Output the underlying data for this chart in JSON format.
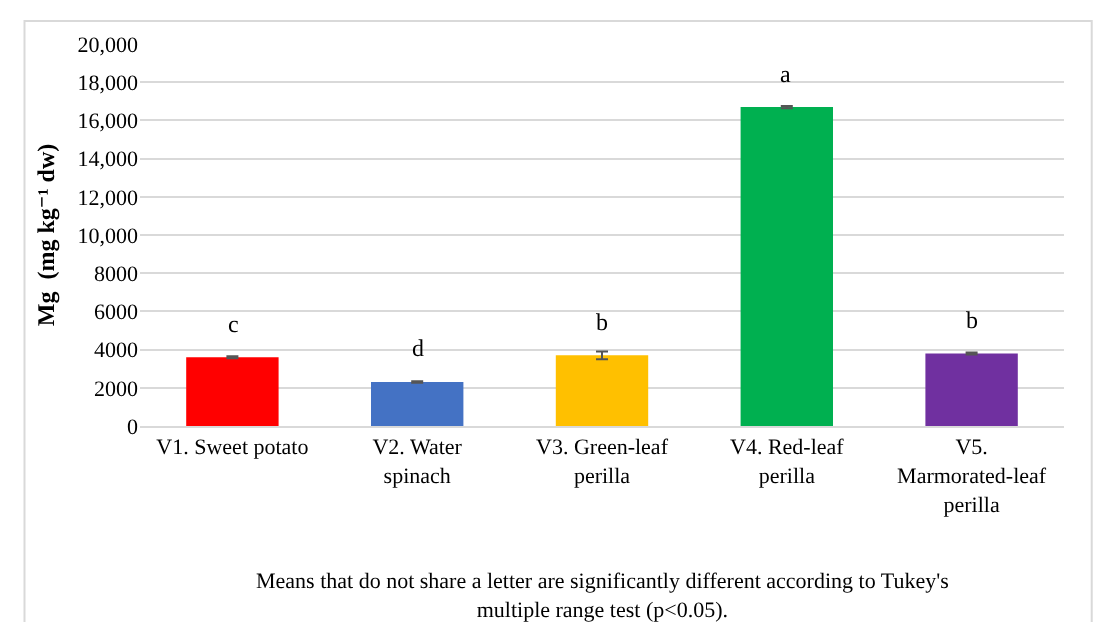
{
  "chart_data": {
    "type": "bar",
    "ylabel": "Mg  (mg kg⁻¹ dw)",
    "categories": [
      "V1. Sweet potato",
      "V2. Water spinach",
      "V3. Green-leaf perilla",
      "V4. Red-leaf perilla",
      "V5. Marmorated-leaf perilla"
    ],
    "values": [
      3600,
      2300,
      3700,
      16700,
      3800
    ],
    "errors": [
      50,
      40,
      200,
      60,
      50
    ],
    "colors": [
      "#ff0000",
      "#4472c4",
      "#ffc000",
      "#00b050",
      "#7030a0"
    ],
    "ylim": [
      0,
      20000
    ],
    "yticks": [
      0,
      2000,
      4000,
      6000,
      8000,
      {
        "value": 10000,
        "label": "10,000"
      },
      {
        "value": 12000,
        "label": "12,000"
      },
      {
        "value": 14000,
        "label": "14,000"
      },
      {
        "value": 16000,
        "label": "16,000"
      },
      {
        "value": 18000,
        "label": "18,000"
      },
      {
        "value": 20000,
        "label": "20,000"
      }
    ],
    "grid": "y",
    "annotations": [
      {
        "text": "c",
        "x": "V1. Sweet potato",
        "y": 3600
      },
      {
        "text": "d",
        "x": "V2. Water spinach",
        "y": 2300
      },
      {
        "text": "b",
        "x": "V3. Green-leaf perilla",
        "y": 3700
      },
      {
        "text": "a",
        "x": "V4. Red-leaf perilla",
        "y": 16700
      },
      {
        "text": "b",
        "x": "V5. Marmorated-leaf perilla",
        "y": 3800
      },
      "Means that do not share a letter are significantly different according to Tukey's multiple range test (p<0.05)."
    ]
  }
}
